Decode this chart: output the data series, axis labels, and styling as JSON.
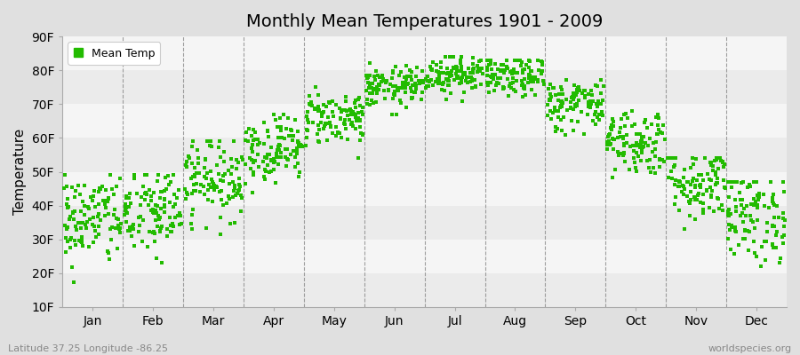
{
  "title": "Monthly Mean Temperatures 1901 - 2009",
  "ylabel": "Temperature",
  "xlabel_labels": [
    "Jan",
    "Feb",
    "Mar",
    "Apr",
    "May",
    "Jun",
    "Jul",
    "Aug",
    "Sep",
    "Oct",
    "Nov",
    "Dec"
  ],
  "ytick_labels": [
    "10F",
    "20F",
    "30F",
    "40F",
    "50F",
    "60F",
    "70F",
    "80F",
    "90F"
  ],
  "ytick_values": [
    10,
    20,
    30,
    40,
    50,
    60,
    70,
    80,
    90
  ],
  "ylim": [
    10,
    90
  ],
  "dot_color": "#22bb00",
  "dot_size": 5,
  "figure_bg_color": "#e0e0e0",
  "plot_bg_color": "#f5f5f5",
  "legend_label": "Mean Temp",
  "bottom_left_text": "Latitude 37.25 Longitude -86.25",
  "bottom_right_text": "worldspecies.org",
  "monthly_means": [
    36,
    38,
    48,
    57,
    66,
    75,
    79,
    78,
    70,
    59,
    47,
    37
  ],
  "monthly_stds": [
    7,
    7,
    6,
    5,
    4,
    3,
    3,
    3,
    4,
    5,
    6,
    7
  ],
  "monthly_mins": [
    14,
    16,
    28,
    38,
    54,
    67,
    71,
    69,
    60,
    46,
    33,
    22
  ],
  "monthly_maxs": [
    49,
    49,
    59,
    67,
    75,
    83,
    84,
    83,
    78,
    68,
    54,
    47
  ],
  "n_years": 109,
  "seed": 42
}
